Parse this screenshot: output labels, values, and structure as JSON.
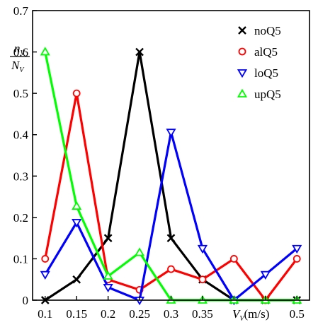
{
  "chart_data": {
    "type": "line",
    "x": [
      0.1,
      0.15,
      0.2,
      0.25,
      0.3,
      0.35,
      0.4,
      0.45,
      0.5
    ],
    "xticks": [
      "0.1",
      "0.15",
      "0.2",
      "0.25",
      "0.3",
      "0.35",
      "",
      "",
      "0.5"
    ],
    "xlabel": {
      "main": "V",
      "sub": "V",
      "unit": "(m/s)"
    },
    "ylabel": {
      "numerator": "n",
      "numerator_sub": "V",
      "denominator": "N",
      "denominator_sub": "V"
    },
    "yticks": [
      "0",
      "0.1",
      "0.2",
      "0.3",
      "0.4",
      "0.5",
      "0.6",
      "0.7"
    ],
    "ylim": [
      0,
      0.7
    ],
    "grid": false,
    "legend_position": "top-right",
    "series": [
      {
        "name": "noQ5",
        "color": "#000000",
        "marker": "x",
        "values": [
          0.0,
          0.05,
          0.15,
          0.6,
          0.15,
          0.05,
          0.0,
          0.0,
          0.0
        ]
      },
      {
        "name": "alQ5",
        "color": "#ff0000",
        "marker": "circle",
        "values": [
          0.1,
          0.5,
          0.05,
          0.025,
          0.075,
          0.05,
          0.1,
          0.0,
          0.1
        ]
      },
      {
        "name": "loQ5",
        "color": "#0000ff",
        "marker": "triangle-down",
        "values": [
          0.062,
          0.188,
          0.031,
          0.0,
          0.406,
          0.125,
          0.0,
          0.062,
          0.125
        ]
      },
      {
        "name": "upQ5",
        "color": "#00ff00",
        "marker": "triangle-up",
        "values": [
          0.6,
          0.227,
          0.058,
          0.115,
          0.0,
          0.0,
          0.0,
          0.0,
          0.0
        ]
      }
    ]
  }
}
